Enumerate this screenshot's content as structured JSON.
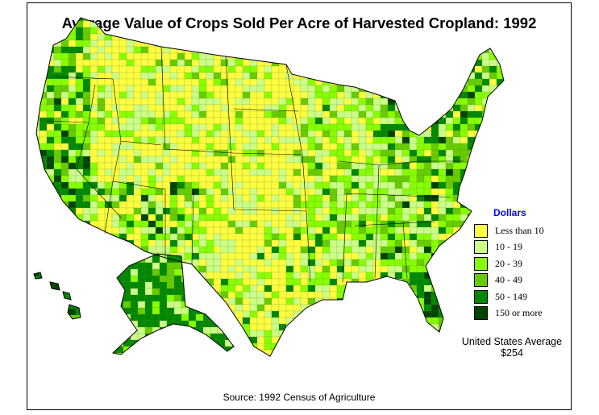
{
  "title": "Average Value of Crops Sold Per Acre of Harvested Cropland:  1992",
  "legend": {
    "title": "Dollars",
    "items": [
      {
        "label": "Less than 10",
        "color": "#ffff40"
      },
      {
        "label": "10  -  19",
        "color": "#ccff88"
      },
      {
        "label": "20  -  39",
        "color": "#88ff00"
      },
      {
        "label": "40  -  49",
        "color": "#66cc00"
      },
      {
        "label": "50  -  149",
        "color": "#008800"
      },
      {
        "label": "150 or more",
        "color": "#004400"
      }
    ]
  },
  "average": {
    "label": "United States Average",
    "value": "$254"
  },
  "source": "Source:  1992 Census of Agriculture"
}
